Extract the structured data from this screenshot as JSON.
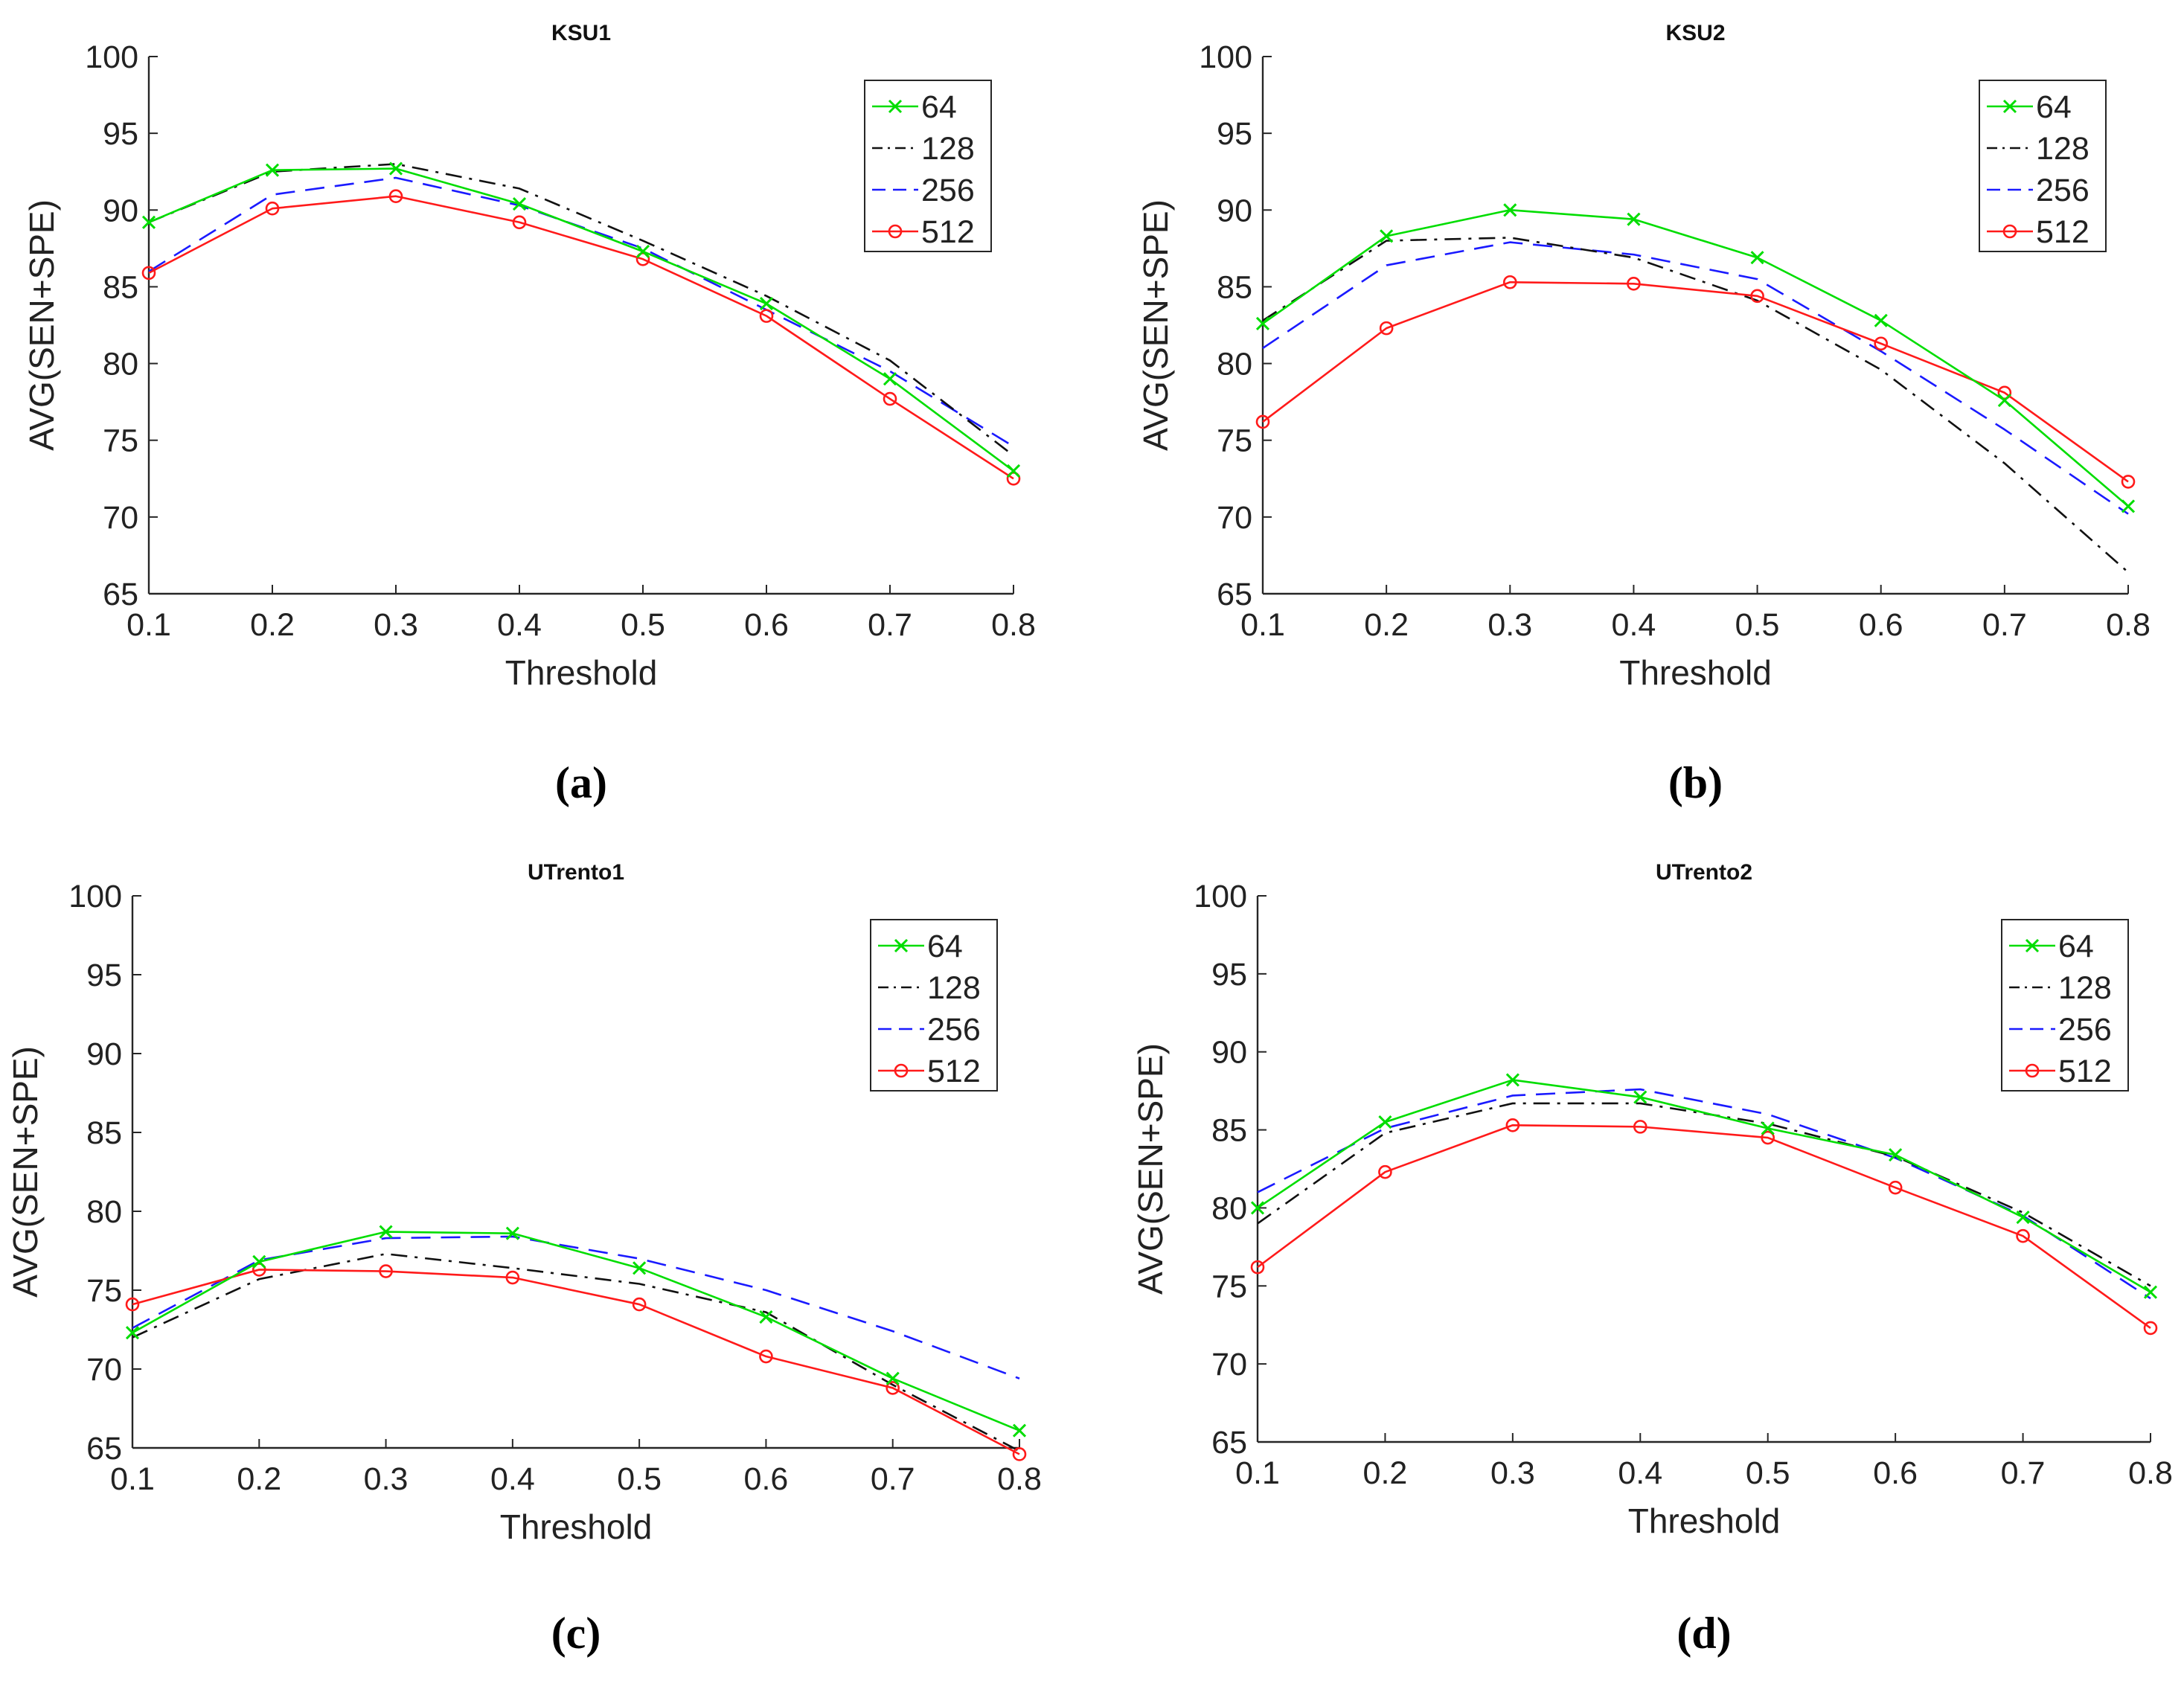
{
  "figure": {
    "colors": {
      "64": "#00dd00",
      "128": "#111111",
      "256": "#1a1aff",
      "512": "#ff1a1a",
      "axis": "#262626"
    }
  },
  "chart_data": [
    {
      "type": "line",
      "panel": "(a)",
      "title": "KSU1",
      "xlabel": "Threshold",
      "ylabel": "AVG(SEN+SPE)",
      "x": [
        0.1,
        0.2,
        0.3,
        0.4,
        0.5,
        0.6,
        0.7,
        0.8
      ],
      "xticks": [
        "0.1",
        "0.2",
        "0.3",
        "0.4",
        "0.5",
        "0.6",
        "0.7",
        "0.8"
      ],
      "ylim": [
        65,
        100
      ],
      "yticks": [
        "65",
        "70",
        "75",
        "80",
        "85",
        "90",
        "95",
        "100"
      ],
      "legend_position": "top-right",
      "series": [
        {
          "name": "64",
          "style": "solid-x",
          "values": [
            89.2,
            92.6,
            92.7,
            90.4,
            87.3,
            83.9,
            79.0,
            73.0
          ]
        },
        {
          "name": "128",
          "style": "dashdot",
          "values": [
            89.2,
            92.5,
            93.0,
            91.4,
            88.0,
            84.4,
            80.2,
            74.0
          ]
        },
        {
          "name": "256",
          "style": "dashed",
          "values": [
            86.0,
            91.0,
            92.1,
            90.3,
            87.5,
            83.5,
            79.5,
            74.6
          ]
        },
        {
          "name": "512",
          "style": "solid-o",
          "values": [
            85.9,
            90.1,
            90.9,
            89.2,
            86.8,
            83.1,
            77.7,
            72.5
          ]
        }
      ]
    },
    {
      "type": "line",
      "panel": "(b)",
      "title": "KSU2",
      "xlabel": "Threshold",
      "ylabel": "AVG(SEN+SPE)",
      "x": [
        0.1,
        0.2,
        0.3,
        0.4,
        0.5,
        0.6,
        0.7,
        0.8
      ],
      "xticks": [
        "0.1",
        "0.2",
        "0.3",
        "0.4",
        "0.5",
        "0.6",
        "0.7",
        "0.8"
      ],
      "ylim": [
        65,
        100
      ],
      "yticks": [
        "65",
        "70",
        "75",
        "80",
        "85",
        "90",
        "95",
        "100"
      ],
      "legend_position": "top-right",
      "series": [
        {
          "name": "64",
          "style": "solid-x",
          "values": [
            82.6,
            88.3,
            90.0,
            89.4,
            86.9,
            82.8,
            77.6,
            70.7
          ]
        },
        {
          "name": "128",
          "style": "dashdot",
          "values": [
            82.8,
            88.0,
            88.2,
            86.9,
            84.1,
            79.6,
            73.5,
            66.4
          ]
        },
        {
          "name": "256",
          "style": "dashed",
          "values": [
            81.0,
            86.4,
            87.9,
            87.1,
            85.5,
            80.8,
            75.7,
            70.2
          ]
        },
        {
          "name": "512",
          "style": "solid-o",
          "values": [
            76.2,
            82.3,
            85.3,
            85.2,
            84.4,
            81.3,
            78.1,
            72.3
          ]
        }
      ]
    },
    {
      "type": "line",
      "panel": "(c)",
      "title": "UTrento1",
      "xlabel": "Threshold",
      "ylabel": "AVG(SEN+SPE)",
      "x": [
        0.1,
        0.2,
        0.3,
        0.4,
        0.5,
        0.6,
        0.7,
        0.8
      ],
      "xticks": [
        "0.1",
        "0.2",
        "0.3",
        "0.4",
        "0.5",
        "0.6",
        "0.7",
        "0.8"
      ],
      "ylim": [
        65,
        100
      ],
      "yticks": [
        "65",
        "70",
        "75",
        "80",
        "85",
        "90",
        "95",
        "100"
      ],
      "legend_position": "top-right",
      "series": [
        {
          "name": "64",
          "style": "solid-x",
          "values": [
            72.3,
            76.8,
            78.7,
            78.6,
            76.4,
            73.3,
            69.4,
            66.1
          ]
        },
        {
          "name": "128",
          "style": "dashdot",
          "values": [
            72.0,
            75.7,
            77.3,
            76.4,
            75.4,
            73.6,
            69.0,
            64.8
          ]
        },
        {
          "name": "256",
          "style": "dashed",
          "values": [
            72.6,
            76.9,
            78.3,
            78.4,
            77.0,
            75.0,
            72.4,
            69.4
          ]
        },
        {
          "name": "512",
          "style": "solid-o",
          "values": [
            74.1,
            76.3,
            76.2,
            75.8,
            74.1,
            70.8,
            68.8,
            64.6
          ]
        }
      ]
    },
    {
      "type": "line",
      "panel": "(d)",
      "title": "UTrento2",
      "xlabel": "Threshold",
      "ylabel": "AVG(SEN+SPE)",
      "x": [
        0.1,
        0.2,
        0.3,
        0.4,
        0.5,
        0.6,
        0.7,
        0.8
      ],
      "xticks": [
        "0.1",
        "0.2",
        "0.3",
        "0.4",
        "0.5",
        "0.6",
        "0.7",
        "0.8"
      ],
      "ylim": [
        65,
        100
      ],
      "yticks": [
        "65",
        "70",
        "75",
        "80",
        "85",
        "90",
        "95",
        "100"
      ],
      "legend_position": "top-right",
      "series": [
        {
          "name": "64",
          "style": "solid-x",
          "values": [
            80.0,
            85.5,
            88.2,
            87.1,
            85.1,
            83.4,
            79.4,
            74.6
          ]
        },
        {
          "name": "128",
          "style": "dashdot",
          "values": [
            79.0,
            84.8,
            86.7,
            86.7,
            85.4,
            83.3,
            79.7,
            75.0
          ]
        },
        {
          "name": "256",
          "style": "dashed",
          "values": [
            81.0,
            85.1,
            87.2,
            87.6,
            86.0,
            83.2,
            79.5,
            74.2
          ]
        },
        {
          "name": "512",
          "style": "solid-o",
          "values": [
            76.2,
            82.3,
            85.3,
            85.2,
            84.5,
            81.3,
            78.2,
            72.3
          ]
        }
      ]
    }
  ]
}
